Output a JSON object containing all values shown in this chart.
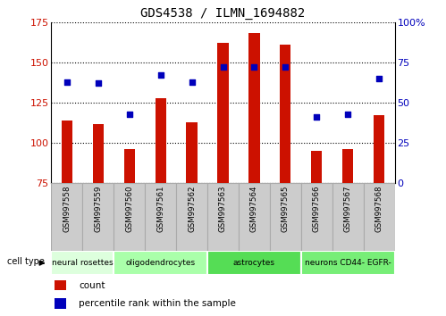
{
  "title": "GDS4538 / ILMN_1694882",
  "samples": [
    "GSM997558",
    "GSM997559",
    "GSM997560",
    "GSM997561",
    "GSM997562",
    "GSM997563",
    "GSM997564",
    "GSM997565",
    "GSM997566",
    "GSM997567",
    "GSM997568"
  ],
  "counts": [
    114,
    112,
    96,
    128,
    113,
    162,
    168,
    161,
    95,
    96,
    117
  ],
  "percentiles": [
    63,
    62,
    43,
    67,
    63,
    72,
    72,
    72,
    41,
    43,
    65
  ],
  "ylim_left": [
    75,
    175
  ],
  "ylim_right": [
    0,
    100
  ],
  "yticks_left": [
    75,
    100,
    125,
    150,
    175
  ],
  "yticks_right": [
    0,
    25,
    50,
    75,
    100
  ],
  "bar_color": "#cc1100",
  "dot_color": "#0000bb",
  "grid_color": "#000000",
  "bar_width": 0.35,
  "ylabel_left_color": "#cc1100",
  "ylabel_right_color": "#0000bb",
  "cell_type_spans": [
    {
      "label": "neural rosettes",
      "start": 0,
      "end": 2,
      "color": "#ddffdd"
    },
    {
      "label": "oligodendrocytes",
      "start": 2,
      "end": 5,
      "color": "#aaffaa"
    },
    {
      "label": "astrocytes",
      "start": 5,
      "end": 8,
      "color": "#55dd55"
    },
    {
      "label": "neurons CD44- EGFR-",
      "start": 8,
      "end": 11,
      "color": "#77ee77"
    }
  ],
  "sample_box_color": "#cccccc",
  "sample_box_edge": "#aaaaaa"
}
